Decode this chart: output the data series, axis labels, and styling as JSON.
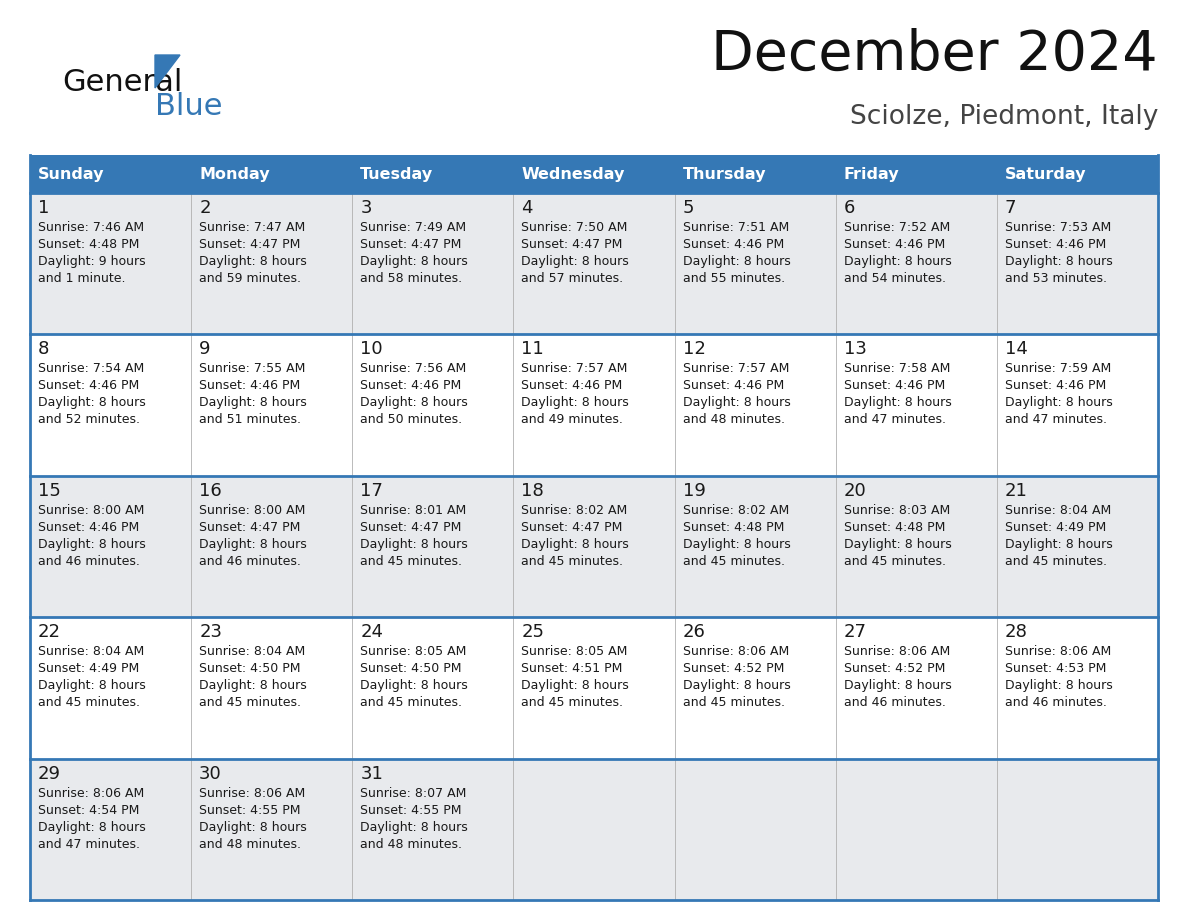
{
  "title": "December 2024",
  "subtitle": "Sciolze, Piedmont, Italy",
  "header_color": "#3578b5",
  "header_text_color": "#ffffff",
  "odd_row_color": "#e8eaed",
  "even_row_color": "#ffffff",
  "line_color": "#3578b5",
  "text_color": "#1a1a1a",
  "days_of_week": [
    "Sunday",
    "Monday",
    "Tuesday",
    "Wednesday",
    "Thursday",
    "Friday",
    "Saturday"
  ],
  "weeks": [
    [
      {
        "day": "1",
        "sunrise": "7:46 AM",
        "sunset": "4:48 PM",
        "daylight1": "Daylight: 9 hours",
        "daylight2": "and 1 minute."
      },
      {
        "day": "2",
        "sunrise": "7:47 AM",
        "sunset": "4:47 PM",
        "daylight1": "Daylight: 8 hours",
        "daylight2": "and 59 minutes."
      },
      {
        "day": "3",
        "sunrise": "7:49 AM",
        "sunset": "4:47 PM",
        "daylight1": "Daylight: 8 hours",
        "daylight2": "and 58 minutes."
      },
      {
        "day": "4",
        "sunrise": "7:50 AM",
        "sunset": "4:47 PM",
        "daylight1": "Daylight: 8 hours",
        "daylight2": "and 57 minutes."
      },
      {
        "day": "5",
        "sunrise": "7:51 AM",
        "sunset": "4:46 PM",
        "daylight1": "Daylight: 8 hours",
        "daylight2": "and 55 minutes."
      },
      {
        "day": "6",
        "sunrise": "7:52 AM",
        "sunset": "4:46 PM",
        "daylight1": "Daylight: 8 hours",
        "daylight2": "and 54 minutes."
      },
      {
        "day": "7",
        "sunrise": "7:53 AM",
        "sunset": "4:46 PM",
        "daylight1": "Daylight: 8 hours",
        "daylight2": "and 53 minutes."
      }
    ],
    [
      {
        "day": "8",
        "sunrise": "7:54 AM",
        "sunset": "4:46 PM",
        "daylight1": "Daylight: 8 hours",
        "daylight2": "and 52 minutes."
      },
      {
        "day": "9",
        "sunrise": "7:55 AM",
        "sunset": "4:46 PM",
        "daylight1": "Daylight: 8 hours",
        "daylight2": "and 51 minutes."
      },
      {
        "day": "10",
        "sunrise": "7:56 AM",
        "sunset": "4:46 PM",
        "daylight1": "Daylight: 8 hours",
        "daylight2": "and 50 minutes."
      },
      {
        "day": "11",
        "sunrise": "7:57 AM",
        "sunset": "4:46 PM",
        "daylight1": "Daylight: 8 hours",
        "daylight2": "and 49 minutes."
      },
      {
        "day": "12",
        "sunrise": "7:57 AM",
        "sunset": "4:46 PM",
        "daylight1": "Daylight: 8 hours",
        "daylight2": "and 48 minutes."
      },
      {
        "day": "13",
        "sunrise": "7:58 AM",
        "sunset": "4:46 PM",
        "daylight1": "Daylight: 8 hours",
        "daylight2": "and 47 minutes."
      },
      {
        "day": "14",
        "sunrise": "7:59 AM",
        "sunset": "4:46 PM",
        "daylight1": "Daylight: 8 hours",
        "daylight2": "and 47 minutes."
      }
    ],
    [
      {
        "day": "15",
        "sunrise": "8:00 AM",
        "sunset": "4:46 PM",
        "daylight1": "Daylight: 8 hours",
        "daylight2": "and 46 minutes."
      },
      {
        "day": "16",
        "sunrise": "8:00 AM",
        "sunset": "4:47 PM",
        "daylight1": "Daylight: 8 hours",
        "daylight2": "and 46 minutes."
      },
      {
        "day": "17",
        "sunrise": "8:01 AM",
        "sunset": "4:47 PM",
        "daylight1": "Daylight: 8 hours",
        "daylight2": "and 45 minutes."
      },
      {
        "day": "18",
        "sunrise": "8:02 AM",
        "sunset": "4:47 PM",
        "daylight1": "Daylight: 8 hours",
        "daylight2": "and 45 minutes."
      },
      {
        "day": "19",
        "sunrise": "8:02 AM",
        "sunset": "4:48 PM",
        "daylight1": "Daylight: 8 hours",
        "daylight2": "and 45 minutes."
      },
      {
        "day": "20",
        "sunrise": "8:03 AM",
        "sunset": "4:48 PM",
        "daylight1": "Daylight: 8 hours",
        "daylight2": "and 45 minutes."
      },
      {
        "day": "21",
        "sunrise": "8:04 AM",
        "sunset": "4:49 PM",
        "daylight1": "Daylight: 8 hours",
        "daylight2": "and 45 minutes."
      }
    ],
    [
      {
        "day": "22",
        "sunrise": "8:04 AM",
        "sunset": "4:49 PM",
        "daylight1": "Daylight: 8 hours",
        "daylight2": "and 45 minutes."
      },
      {
        "day": "23",
        "sunrise": "8:04 AM",
        "sunset": "4:50 PM",
        "daylight1": "Daylight: 8 hours",
        "daylight2": "and 45 minutes."
      },
      {
        "day": "24",
        "sunrise": "8:05 AM",
        "sunset": "4:50 PM",
        "daylight1": "Daylight: 8 hours",
        "daylight2": "and 45 minutes."
      },
      {
        "day": "25",
        "sunrise": "8:05 AM",
        "sunset": "4:51 PM",
        "daylight1": "Daylight: 8 hours",
        "daylight2": "and 45 minutes."
      },
      {
        "day": "26",
        "sunrise": "8:06 AM",
        "sunset": "4:52 PM",
        "daylight1": "Daylight: 8 hours",
        "daylight2": "and 45 minutes."
      },
      {
        "day": "27",
        "sunrise": "8:06 AM",
        "sunset": "4:52 PM",
        "daylight1": "Daylight: 8 hours",
        "daylight2": "and 46 minutes."
      },
      {
        "day": "28",
        "sunrise": "8:06 AM",
        "sunset": "4:53 PM",
        "daylight1": "Daylight: 8 hours",
        "daylight2": "and 46 minutes."
      }
    ],
    [
      {
        "day": "29",
        "sunrise": "8:06 AM",
        "sunset": "4:54 PM",
        "daylight1": "Daylight: 8 hours",
        "daylight2": "and 47 minutes."
      },
      {
        "day": "30",
        "sunrise": "8:06 AM",
        "sunset": "4:55 PM",
        "daylight1": "Daylight: 8 hours",
        "daylight2": "and 48 minutes."
      },
      {
        "day": "31",
        "sunrise": "8:07 AM",
        "sunset": "4:55 PM",
        "daylight1": "Daylight: 8 hours",
        "daylight2": "and 48 minutes."
      },
      null,
      null,
      null,
      null
    ]
  ]
}
